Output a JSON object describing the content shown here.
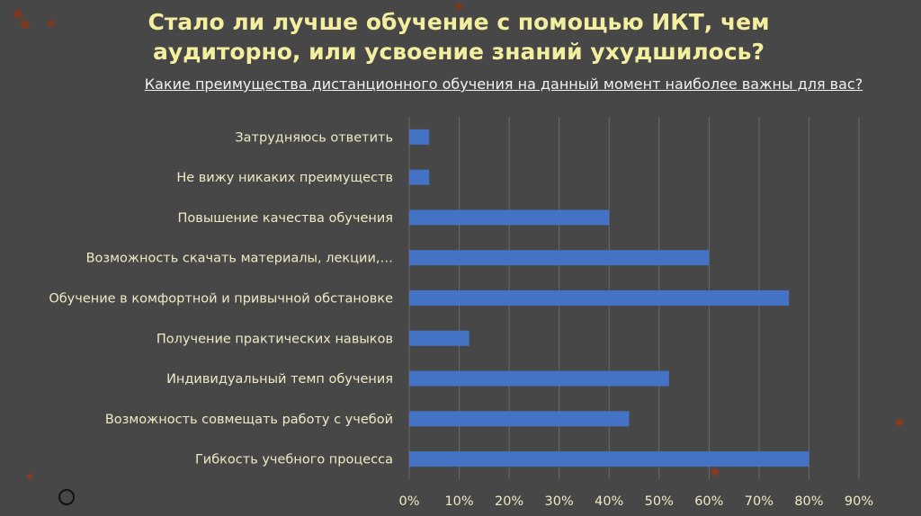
{
  "slide": {
    "title": "Стало ли лучше обучение с помощью ИКТ, чем аудиторно, или усвоение знаний ухудшилось?"
  },
  "chart_data": {
    "type": "bar",
    "orientation": "horizontal",
    "title": "Какие преимущества дистанционного обучения на данный момент наиболее важны для вас?",
    "categories": [
      "Затрудняюсь ответить",
      "Не вижу никаких преимуществ",
      "Повышение качества обучения",
      "Возможность скачать материалы, лекции,…",
      "Обучение в комфортной и привычной обстановке",
      "Получение практических навыков",
      "Индивидуальный темп обучения",
      "Возможность совмещать работу с учебой",
      "Гибкость учебного процесса"
    ],
    "values": [
      4,
      4,
      40,
      60,
      76,
      12,
      52,
      44,
      80
    ],
    "xlim": [
      0,
      90
    ],
    "xticks": [
      "0%",
      "10%",
      "20%",
      "30%",
      "40%",
      "50%",
      "60%",
      "70%",
      "80%",
      "90%"
    ],
    "grid": true,
    "bar_color": "#4472c4",
    "xlabel": "",
    "ylabel": ""
  }
}
